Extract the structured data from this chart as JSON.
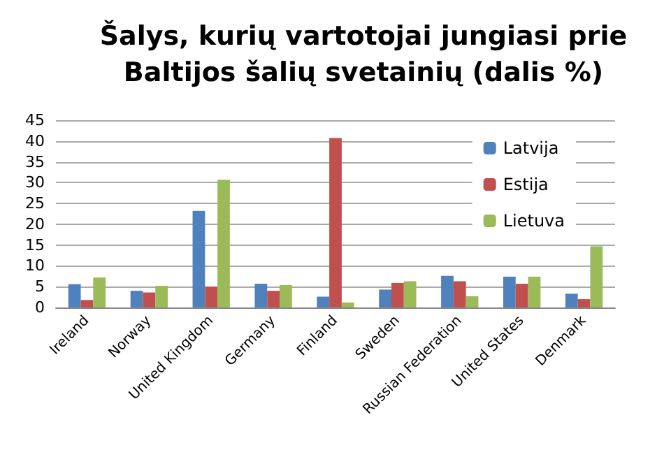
{
  "chart_data": {
    "type": "bar",
    "title": "Šalys, kurių vartotojai jungiasi prie\nBaltijos šalių svetainių (dalis %)",
    "categories": [
      "Ireland",
      "Norway",
      "United Kingdom",
      "Germany",
      "Finland",
      "Sweden",
      "Russian Federation",
      "United States",
      "Denmark"
    ],
    "series": [
      {
        "name": "Latvija",
        "color": "#4f81bd",
        "values": [
          5.6,
          4.0,
          23.2,
          5.7,
          2.6,
          4.3,
          7.6,
          7.4,
          3.3
        ]
      },
      {
        "name": "Estija",
        "color": "#c0504d",
        "values": [
          1.8,
          3.6,
          5.0,
          4.0,
          40.7,
          5.9,
          6.3,
          5.7,
          2.0
        ]
      },
      {
        "name": "Lietuva",
        "color": "#9bbb59",
        "values": [
          7.2,
          5.2,
          30.7,
          5.4,
          1.2,
          6.3,
          2.7,
          7.4,
          14.7
        ]
      }
    ],
    "ylim": [
      0,
      45
    ],
    "yticks": [
      0,
      5,
      10,
      15,
      20,
      25,
      30,
      35,
      40,
      45
    ],
    "grid": "y",
    "legend": "top right"
  }
}
